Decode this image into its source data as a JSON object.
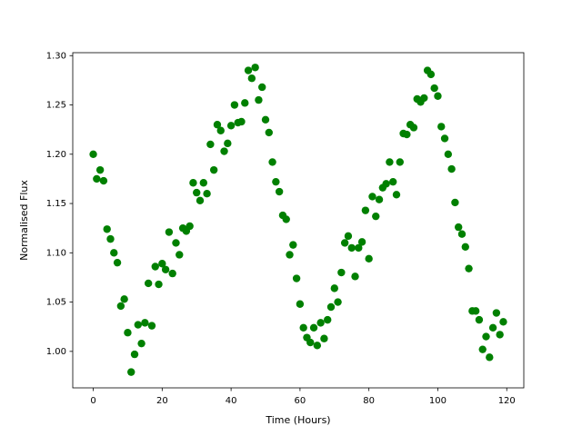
{
  "chart_data": {
    "type": "scatter",
    "xlabel": "Time (Hours)",
    "ylabel": "Normalised Flux",
    "color": "#008000",
    "x": [
      0,
      1,
      2,
      3,
      4,
      5,
      6,
      7,
      8,
      9,
      10,
      11,
      12,
      13,
      14,
      15,
      16,
      17,
      18,
      19,
      20,
      21,
      22,
      23,
      24,
      25,
      26,
      27,
      28,
      29,
      30,
      31,
      32,
      33,
      34,
      35,
      36,
      37,
      38,
      39,
      40,
      41,
      42,
      43,
      44,
      45,
      46,
      47,
      48,
      49,
      50,
      51,
      52,
      53,
      54,
      55,
      56,
      57,
      58,
      59,
      60,
      61,
      62,
      63,
      64,
      65,
      66,
      67,
      68,
      69,
      70,
      71,
      72,
      73,
      74,
      75,
      76,
      77,
      78,
      79,
      80,
      81,
      82,
      83,
      84,
      85,
      86,
      87,
      88,
      89,
      90,
      91,
      92,
      93,
      94,
      95,
      96,
      97,
      98,
      99,
      100,
      101,
      102,
      103,
      104,
      105,
      106,
      107,
      108,
      109,
      110,
      111,
      112,
      113,
      114,
      115,
      116,
      117,
      118,
      119
    ],
    "values": [
      1.2,
      1.175,
      1.184,
      1.173,
      1.124,
      1.114,
      1.1,
      1.09,
      1.046,
      1.053,
      1.019,
      0.979,
      0.997,
      1.027,
      1.008,
      1.029,
      1.069,
      1.026,
      1.086,
      1.068,
      1.089,
      1.083,
      1.121,
      1.079,
      1.11,
      1.098,
      1.125,
      1.122,
      1.127,
      1.171,
      1.161,
      1.153,
      1.171,
      1.16,
      1.21,
      1.184,
      1.23,
      1.224,
      1.203,
      1.211,
      1.229,
      1.25,
      1.232,
      1.233,
      1.252,
      1.285,
      1.277,
      1.288,
      1.255,
      1.268,
      1.235,
      1.222,
      1.192,
      1.172,
      1.162,
      1.138,
      1.134,
      1.098,
      1.108,
      1.074,
      1.048,
      1.024,
      1.014,
      1.009,
      1.024,
      1.006,
      1.029,
      1.013,
      1.032,
      1.045,
      1.064,
      1.05,
      1.08,
      1.11,
      1.117,
      1.105,
      1.076,
      1.105,
      1.111,
      1.143,
      1.094,
      1.157,
      1.137,
      1.154,
      1.166,
      1.17,
      1.192,
      1.172,
      1.159,
      1.192,
      1.221,
      1.22,
      1.23,
      1.227,
      1.256,
      1.253,
      1.257,
      1.285,
      1.281,
      1.267,
      1.259,
      1.228,
      1.216,
      1.2,
      1.185,
      1.151,
      1.126,
      1.119,
      1.106,
      1.084,
      1.041,
      1.041,
      1.032,
      1.002,
      1.015,
      0.994,
      1.024,
      1.039,
      1.017,
      1.03
    ],
    "xlim": [
      -5.95,
      124.95
    ],
    "ylim": [
      0.963,
      1.303
    ],
    "xticks": [
      0,
      20,
      40,
      60,
      80,
      100,
      120
    ],
    "yticks": [
      {
        "value": 1.0,
        "label": "1.00"
      },
      {
        "value": 1.05,
        "label": "1.05"
      },
      {
        "value": 1.1,
        "label": "1.10"
      },
      {
        "value": 1.15,
        "label": "1.15"
      },
      {
        "value": 1.2,
        "label": "1.20"
      },
      {
        "value": 1.25,
        "label": "1.25"
      },
      {
        "value": 1.3,
        "label": "1.30"
      }
    ],
    "grid": false
  }
}
